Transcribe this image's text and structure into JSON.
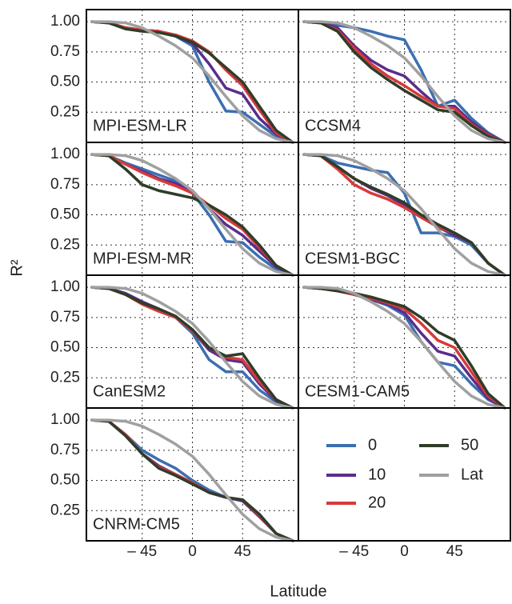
{
  "chart_data": [
    {
      "type": "line",
      "title": "MPI-ESM-LR",
      "ylabel": "R²",
      "xlabel": "Latitude",
      "x": [
        -90,
        -75,
        -60,
        -45,
        -30,
        -15,
        0,
        15,
        30,
        45,
        60,
        75,
        90
      ],
      "xlim": [
        -95,
        95
      ],
      "ylim": [
        0,
        1.1
      ],
      "xticks": [
        {
          "value": -45,
          "label": "– 45"
        },
        0,
        45
      ],
      "yticks": [
        0.25,
        {
          "value": 0.5,
          "label": "0.50"
        },
        {
          "value": 0.75,
          "label": "0.75"
        },
        {
          "value": 1.0,
          "label": "1.00"
        }
      ],
      "grid": true,
      "series": [
        {
          "name": "0",
          "color": "#3b6fb1",
          "values": [
            1,
            0.99,
            0.95,
            0.93,
            0.92,
            0.88,
            0.8,
            0.5,
            0.26,
            0.25,
            0.15,
            0.05,
            0
          ]
        },
        {
          "name": "10",
          "color": "#5a2d8c",
          "values": [
            1,
            0.99,
            0.95,
            0.93,
            0.92,
            0.88,
            0.82,
            0.65,
            0.45,
            0.4,
            0.2,
            0.07,
            0
          ]
        },
        {
          "name": "20",
          "color": "#d63a3b",
          "values": [
            1,
            0.99,
            0.95,
            0.93,
            0.92,
            0.89,
            0.84,
            0.75,
            0.6,
            0.47,
            0.27,
            0.08,
            0
          ]
        },
        {
          "name": "50",
          "color": "#2f3d28",
          "values": [
            1,
            0.99,
            0.94,
            0.92,
            0.91,
            0.88,
            0.83,
            0.74,
            0.62,
            0.5,
            0.3,
            0.1,
            0
          ]
        },
        {
          "name": "Lat",
          "color": "#a0a0a0",
          "values": [
            1,
            1,
            0.99,
            0.95,
            0.88,
            0.8,
            0.7,
            0.55,
            0.38,
            0.22,
            0.1,
            0.03,
            0
          ]
        }
      ]
    },
    {
      "type": "line",
      "title": "CCSM4",
      "x": [
        -90,
        -75,
        -60,
        -45,
        -30,
        -15,
        0,
        15,
        30,
        45,
        60,
        75,
        90
      ],
      "xlim": [
        -95,
        95
      ],
      "ylim": [
        0,
        1.1
      ],
      "xticks": [
        {
          "value": -45,
          "label": "– 45"
        },
        0,
        45
      ],
      "yticks": [
        0.25,
        {
          "value": 0.5,
          "label": "0.50"
        },
        {
          "value": 0.75,
          "label": "0.75"
        },
        {
          "value": 1.0,
          "label": "1.00"
        }
      ],
      "grid": true,
      "series": [
        {
          "name": "0",
          "color": "#3b6fb1",
          "values": [
            1,
            0.99,
            0.97,
            0.95,
            0.92,
            0.88,
            0.85,
            0.6,
            0.3,
            0.35,
            0.2,
            0.08,
            0
          ]
        },
        {
          "name": "10",
          "color": "#5a2d8c",
          "values": [
            1,
            0.99,
            0.95,
            0.8,
            0.68,
            0.6,
            0.55,
            0.42,
            0.3,
            0.3,
            0.17,
            0.07,
            0
          ]
        },
        {
          "name": "20",
          "color": "#d63a3b",
          "values": [
            1,
            0.99,
            0.93,
            0.78,
            0.65,
            0.55,
            0.47,
            0.38,
            0.3,
            0.28,
            0.15,
            0.06,
            0
          ]
        },
        {
          "name": "50",
          "color": "#2f3d28",
          "values": [
            1,
            0.99,
            0.92,
            0.75,
            0.62,
            0.52,
            0.43,
            0.35,
            0.27,
            0.25,
            0.14,
            0.05,
            0
          ]
        },
        {
          "name": "Lat",
          "color": "#a0a0a0",
          "values": [
            1,
            1,
            0.99,
            0.95,
            0.88,
            0.8,
            0.7,
            0.55,
            0.38,
            0.22,
            0.1,
            0.03,
            0
          ]
        }
      ]
    },
    {
      "type": "line",
      "title": "MPI-ESM-MR",
      "x": [
        -90,
        -75,
        -60,
        -45,
        -30,
        -15,
        0,
        15,
        30,
        45,
        60,
        75,
        90
      ],
      "xlim": [
        -95,
        95
      ],
      "ylim": [
        0,
        1.1
      ],
      "xticks": [
        {
          "value": -45,
          "label": "– 45"
        },
        0,
        45
      ],
      "yticks": [
        0.25,
        {
          "value": 0.5,
          "label": "0.50"
        },
        {
          "value": 0.75,
          "label": "0.75"
        },
        {
          "value": 1.0,
          "label": "1.00"
        }
      ],
      "grid": true,
      "series": [
        {
          "name": "0",
          "color": "#3b6fb1",
          "values": [
            1,
            0.99,
            0.93,
            0.88,
            0.83,
            0.78,
            0.68,
            0.5,
            0.28,
            0.27,
            0.15,
            0.05,
            0
          ]
        },
        {
          "name": "10",
          "color": "#5a2d8c",
          "values": [
            1,
            0.99,
            0.92,
            0.86,
            0.8,
            0.76,
            0.7,
            0.55,
            0.42,
            0.33,
            0.2,
            0.07,
            0
          ]
        },
        {
          "name": "20",
          "color": "#d63a3b",
          "values": [
            1,
            0.99,
            0.92,
            0.85,
            0.79,
            0.74,
            0.68,
            0.58,
            0.47,
            0.38,
            0.23,
            0.08,
            0
          ]
        },
        {
          "name": "50",
          "color": "#2f3d28",
          "values": [
            1,
            0.99,
            0.88,
            0.75,
            0.7,
            0.67,
            0.64,
            0.58,
            0.5,
            0.4,
            0.25,
            0.08,
            0
          ]
        },
        {
          "name": "Lat",
          "color": "#a0a0a0",
          "values": [
            1,
            1,
            0.99,
            0.95,
            0.88,
            0.8,
            0.7,
            0.55,
            0.38,
            0.22,
            0.1,
            0.03,
            0
          ]
        }
      ]
    },
    {
      "type": "line",
      "title": "CESM1-BGC",
      "x": [
        -90,
        -75,
        -60,
        -45,
        -30,
        -15,
        0,
        15,
        30,
        45,
        60,
        75,
        90
      ],
      "xlim": [
        -95,
        95
      ],
      "ylim": [
        0,
        1.1
      ],
      "xticks": [
        {
          "value": -45,
          "label": "– 45"
        },
        0,
        45
      ],
      "yticks": [
        0.25,
        {
          "value": 0.5,
          "label": "0.50"
        },
        {
          "value": 0.75,
          "label": "0.75"
        },
        {
          "value": 1.0,
          "label": "1.00"
        }
      ],
      "grid": true,
      "series": [
        {
          "name": "0",
          "color": "#3b6fb1",
          "values": [
            1,
            0.99,
            0.93,
            0.9,
            0.87,
            0.85,
            0.68,
            0.35,
            0.35,
            0.32,
            0.25,
            0.1,
            0
          ]
        },
        {
          "name": "10",
          "color": "#5a2d8c",
          "values": [
            1,
            0.99,
            0.9,
            0.8,
            0.72,
            0.66,
            0.58,
            0.48,
            0.4,
            0.33,
            0.27,
            0.1,
            0
          ]
        },
        {
          "name": "20",
          "color": "#d63a3b",
          "values": [
            1,
            0.99,
            0.88,
            0.75,
            0.68,
            0.63,
            0.56,
            0.48,
            0.4,
            0.35,
            0.27,
            0.1,
            0
          ]
        },
        {
          "name": "50",
          "color": "#2f3d28",
          "values": [
            1,
            0.99,
            0.9,
            0.8,
            0.73,
            0.67,
            0.6,
            0.5,
            0.42,
            0.35,
            0.27,
            0.1,
            0
          ]
        },
        {
          "name": "Lat",
          "color": "#a0a0a0",
          "values": [
            1,
            1,
            0.99,
            0.95,
            0.88,
            0.8,
            0.7,
            0.55,
            0.38,
            0.22,
            0.1,
            0.03,
            0
          ]
        }
      ]
    },
    {
      "type": "line",
      "title": "CanESM2",
      "x": [
        -90,
        -75,
        -60,
        -45,
        -30,
        -15,
        0,
        15,
        30,
        45,
        60,
        75,
        90
      ],
      "xlim": [
        -95,
        95
      ],
      "ylim": [
        0,
        1.1
      ],
      "xticks": [
        {
          "value": -45,
          "label": "– 45"
        },
        0,
        45
      ],
      "yticks": [
        0.25,
        {
          "value": 0.5,
          "label": "0.50"
        },
        {
          "value": 0.75,
          "label": "0.75"
        },
        {
          "value": 1.0,
          "label": "1.00"
        }
      ],
      "grid": true,
      "series": [
        {
          "name": "0",
          "color": "#3b6fb1",
          "values": [
            1,
            0.99,
            0.95,
            0.88,
            0.82,
            0.75,
            0.62,
            0.4,
            0.3,
            0.3,
            0.15,
            0.05,
            0
          ]
        },
        {
          "name": "10",
          "color": "#5a2d8c",
          "values": [
            1,
            0.99,
            0.95,
            0.88,
            0.82,
            0.76,
            0.64,
            0.48,
            0.4,
            0.38,
            0.2,
            0.06,
            0
          ]
        },
        {
          "name": "20",
          "color": "#d63a3b",
          "values": [
            1,
            0.99,
            0.94,
            0.86,
            0.8,
            0.75,
            0.64,
            0.5,
            0.42,
            0.4,
            0.22,
            0.07,
            0
          ]
        },
        {
          "name": "50",
          "color": "#2f3d28",
          "values": [
            1,
            0.99,
            0.94,
            0.87,
            0.82,
            0.76,
            0.65,
            0.5,
            0.43,
            0.45,
            0.25,
            0.07,
            0
          ]
        },
        {
          "name": "Lat",
          "color": "#a0a0a0",
          "values": [
            1,
            1,
            0.99,
            0.95,
            0.88,
            0.8,
            0.7,
            0.55,
            0.38,
            0.22,
            0.1,
            0.03,
            0
          ]
        }
      ]
    },
    {
      "type": "line",
      "title": "CESM1-CAM5",
      "x": [
        -90,
        -75,
        -60,
        -45,
        -30,
        -15,
        0,
        15,
        30,
        45,
        60,
        75,
        90
      ],
      "xlim": [
        -95,
        95
      ],
      "ylim": [
        0,
        1.1
      ],
      "xticks": [
        {
          "value": -45,
          "label": "– 45"
        },
        0,
        45
      ],
      "yticks": [
        0.25,
        {
          "value": 0.5,
          "label": "0.50"
        },
        {
          "value": 0.75,
          "label": "0.75"
        },
        {
          "value": 1.0,
          "label": "1.00"
        }
      ],
      "grid": true,
      "series": [
        {
          "name": "0",
          "color": "#3b6fb1",
          "values": [
            1,
            0.99,
            0.97,
            0.94,
            0.9,
            0.85,
            0.77,
            0.55,
            0.38,
            0.35,
            0.2,
            0.07,
            0
          ]
        },
        {
          "name": "10",
          "color": "#5a2d8c",
          "values": [
            1,
            0.99,
            0.97,
            0.94,
            0.9,
            0.86,
            0.79,
            0.62,
            0.47,
            0.43,
            0.25,
            0.08,
            0
          ]
        },
        {
          "name": "20",
          "color": "#d63a3b",
          "values": [
            1,
            0.99,
            0.97,
            0.94,
            0.91,
            0.87,
            0.82,
            0.7,
            0.56,
            0.5,
            0.3,
            0.1,
            0
          ]
        },
        {
          "name": "50",
          "color": "#2f3d28",
          "values": [
            1,
            0.99,
            0.97,
            0.95,
            0.92,
            0.88,
            0.84,
            0.75,
            0.63,
            0.56,
            0.35,
            0.12,
            0
          ]
        },
        {
          "name": "Lat",
          "color": "#a0a0a0",
          "values": [
            1,
            1,
            0.99,
            0.95,
            0.88,
            0.8,
            0.7,
            0.55,
            0.38,
            0.22,
            0.1,
            0.03,
            0
          ]
        }
      ]
    },
    {
      "type": "line",
      "title": "CNRM-CM5",
      "x": [
        -90,
        -75,
        -60,
        -45,
        -30,
        -15,
        0,
        15,
        30,
        45,
        60,
        75,
        90
      ],
      "xlim": [
        -95,
        95
      ],
      "ylim": [
        0,
        1.1
      ],
      "xticks": [
        {
          "value": -45,
          "label": "– 45"
        },
        0,
        45
      ],
      "yticks": [
        0.25,
        {
          "value": 0.5,
          "label": "0.50"
        },
        {
          "value": 0.75,
          "label": "0.75"
        },
        {
          "value": 1.0,
          "label": "1.00"
        }
      ],
      "grid": true,
      "series": [
        {
          "name": "0",
          "color": "#3b6fb1",
          "values": [
            1,
            0.99,
            0.88,
            0.75,
            0.67,
            0.6,
            0.5,
            0.42,
            0.36,
            0.33,
            0.22,
            0.06,
            0
          ]
        },
        {
          "name": "10",
          "color": "#5a2d8c",
          "values": [
            1,
            0.99,
            0.88,
            0.72,
            0.62,
            0.55,
            0.48,
            0.4,
            0.36,
            0.33,
            0.2,
            0.06,
            0
          ]
        },
        {
          "name": "20",
          "color": "#d63a3b",
          "values": [
            1,
            0.99,
            0.88,
            0.72,
            0.61,
            0.55,
            0.48,
            0.4,
            0.36,
            0.34,
            0.21,
            0.06,
            0
          ]
        },
        {
          "name": "50",
          "color": "#2f3d28",
          "values": [
            1,
            0.99,
            0.87,
            0.72,
            0.6,
            0.54,
            0.47,
            0.4,
            0.36,
            0.34,
            0.22,
            0.06,
            0
          ]
        },
        {
          "name": "Lat",
          "color": "#a0a0a0",
          "values": [
            1,
            1,
            0.99,
            0.95,
            0.88,
            0.8,
            0.7,
            0.55,
            0.38,
            0.22,
            0.1,
            0.03,
            0
          ]
        }
      ]
    }
  ]
}
